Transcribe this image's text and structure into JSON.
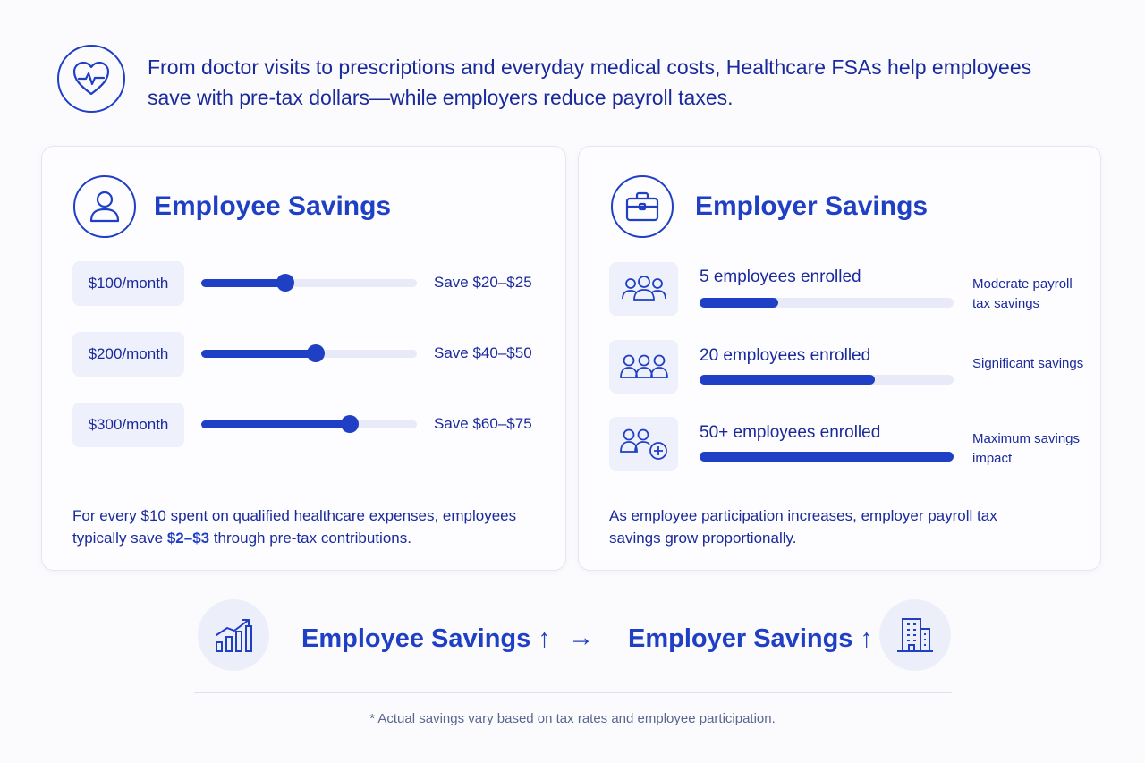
{
  "header": {
    "text": "From doctor visits to prescriptions and everyday medical costs, Healthcare FSAs help employees save with pre-tax dollars—while employers reduce payroll taxes.",
    "icon": "heart-pulse-icon"
  },
  "employee": {
    "title": "Employee Savings",
    "icon": "user-icon",
    "rows": [
      {
        "amount": "$100/month",
        "save": "Save $20–$25",
        "level": 0.39
      },
      {
        "amount": "$200/month",
        "save": "Save $40–$50",
        "level": 0.53
      },
      {
        "amount": "$300/month",
        "save": "Save $60–$75",
        "level": 0.69
      }
    ],
    "foot_pre": "For every $10 spent on qualified healthcare expenses, employees typically save ",
    "foot_hl": "$2–$3",
    "foot_post": " through pre-tax contributions."
  },
  "employer": {
    "title": "Employer Savings",
    "icon": "briefcase-icon",
    "rows": [
      {
        "label": "5 employees enrolled",
        "note": "Moderate payroll tax savings",
        "level": 0.31,
        "icon": "people-group-icon"
      },
      {
        "label": "20 employees enrolled",
        "note": "Significant savings",
        "level": 0.69,
        "icon": "people-group-icon"
      },
      {
        "label": "50+ employees enrolled",
        "note": "Maximum savings impact",
        "level": 1.0,
        "icon": "people-add-icon"
      }
    ],
    "foot": "As employee participation increases, employer payroll tax savings grow proportionally."
  },
  "bottom": {
    "left_label": "Employee Savings ↑",
    "arrow": "→",
    "right_label": "Employer Savings ↑",
    "left_icon": "growth-chart-icon",
    "right_icon": "building-icon"
  },
  "footnote": "* Actual savings vary based on tax rates and employee participation.",
  "colors": {
    "accent": "#1f3fc4",
    "text": "#1a2a9c",
    "soft": "#eef0fb"
  }
}
